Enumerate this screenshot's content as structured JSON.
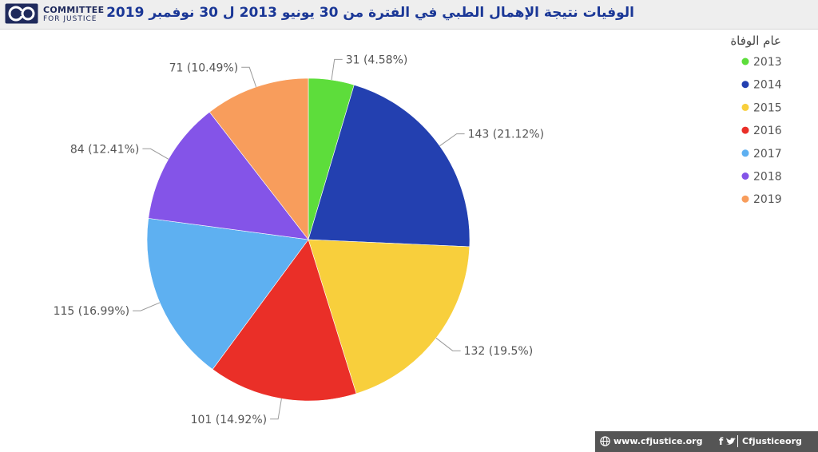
{
  "header": {
    "title": "الوفيات نتيجة الإهمال الطبي في الفترة من 30 يونيو 2013 ل 30 نوفمبر 2019",
    "logo_line1": "COMMITTEE",
    "logo_line2": "FOR JUSTICE"
  },
  "footer": {
    "website": "www.cfjustice.org",
    "social_icons": "f",
    "handle": "Cfjusticeorg",
    "globe_icon": "globe-icon",
    "twitter_icon": "twitter-icon"
  },
  "chart_data": {
    "type": "pie",
    "title": "",
    "legend_title": "عام الوفاة",
    "legend_position": "right",
    "categories": [
      "2013",
      "2014",
      "2015",
      "2016",
      "2017",
      "2018",
      "2019"
    ],
    "values": [
      31,
      143,
      132,
      101,
      115,
      84,
      71
    ],
    "labels": [
      "31 (4.58%)",
      "143 (21.12%)",
      "132 (19.5%)",
      "101 (14.92%)",
      "115 (16.99%)",
      "84 (12.41%)",
      "71 (10.49%)"
    ],
    "colors": [
      "#5ddd3b",
      "#2340b0",
      "#f8cf3c",
      "#ea2f28",
      "#5eb0f1",
      "#8454e8",
      "#f89d5c"
    ]
  }
}
